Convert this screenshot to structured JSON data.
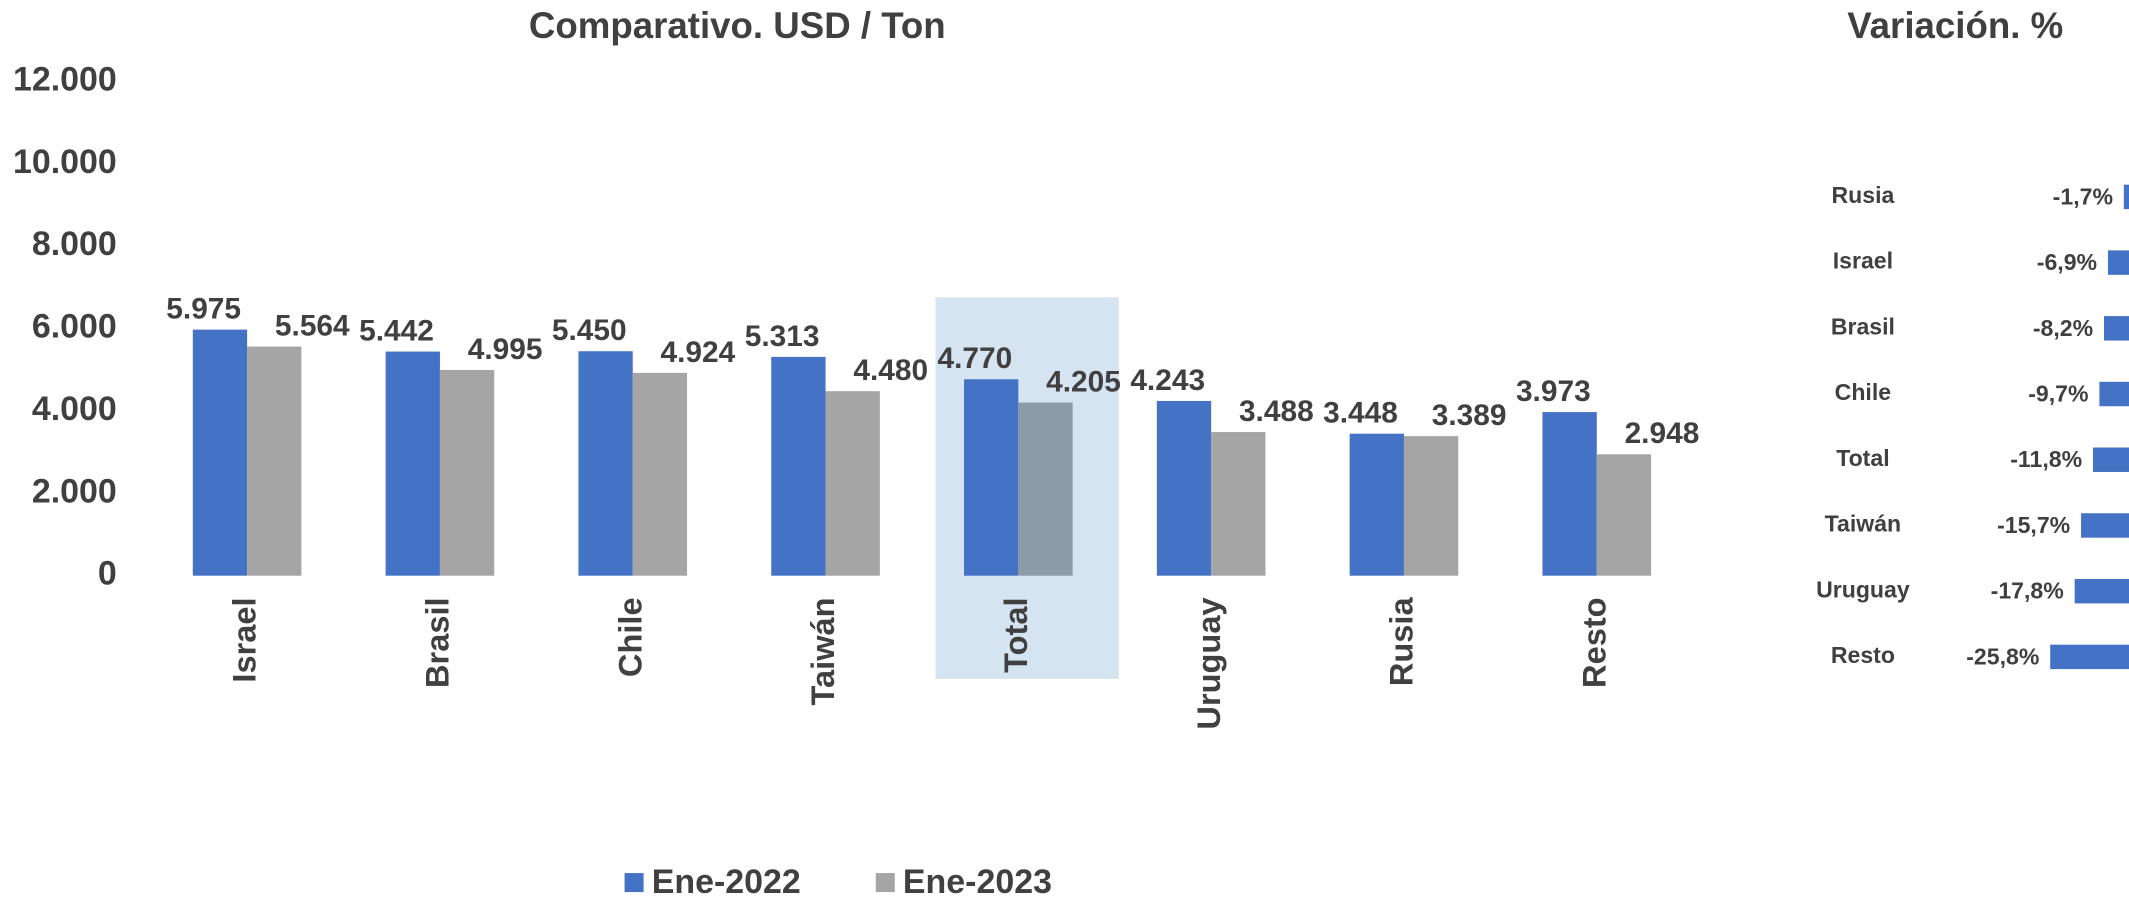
{
  "chart_data": [
    {
      "type": "bar",
      "title": "Comparativo. USD / Ton",
      "categories": [
        "Israel",
        "Brasil",
        "Chile",
        "Taiwán",
        "Total",
        "Uruguay",
        "Rusia",
        "Resto"
      ],
      "series": [
        {
          "name": "Ene-2022",
          "color": "#4472c4",
          "label_color": "#1f4e79",
          "values": [
            5975,
            5442,
            5450,
            5313,
            4770,
            4243,
            3448,
            3973
          ],
          "value_labels": [
            "5.975",
            "5.442",
            "5.450",
            "5.313",
            "4.770",
            "4.243",
            "3.448",
            "3.973"
          ]
        },
        {
          "name": "Ene-2023",
          "color": "#a5a5a5",
          "label_color": "#404040",
          "values": [
            5564,
            4995,
            4924,
            4480,
            4205,
            3488,
            3389,
            2948
          ],
          "value_labels": [
            "5.564",
            "4.995",
            "4.924",
            "4.480",
            "4.205",
            "3.488",
            "3.389",
            "2.948"
          ]
        }
      ],
      "highlight": "Total",
      "highlight_fill": "#d6e3f0",
      "highlight_color": "#8c9ba8",
      "ylim": [
        0,
        12000
      ],
      "yticks": [
        0,
        {
          "value": 2000,
          "label": "2.000"
        },
        {
          "value": 4000,
          "label": "4.000"
        },
        {
          "value": 6000,
          "label": "6.000"
        },
        {
          "value": 8000,
          "label": "8.000"
        },
        {
          "value": 10000,
          "label": "10.000"
        },
        {
          "value": 12000,
          "label": "12.000"
        }
      ],
      "grid": false,
      "legend": "bottom"
    },
    {
      "type": "hbar",
      "title": "Variación. %",
      "categories": [
        "Rusia",
        "Israel",
        "Brasil",
        "Chile",
        "Total",
        "Taiwán",
        "Uruguay",
        "Resto"
      ],
      "values": [
        -1.7,
        -6.9,
        -8.2,
        -9.7,
        -11.8,
        -15.7,
        -17.8,
        -25.8
      ],
      "value_labels": [
        "-1,7%",
        "-6,9%",
        "-8,2%",
        "-9,7%",
        "-11,8%",
        "-15,7%",
        "-17,8%",
        "-25,8%"
      ],
      "color": "#4472c4",
      "xlim": [
        -30,
        0
      ]
    }
  ]
}
